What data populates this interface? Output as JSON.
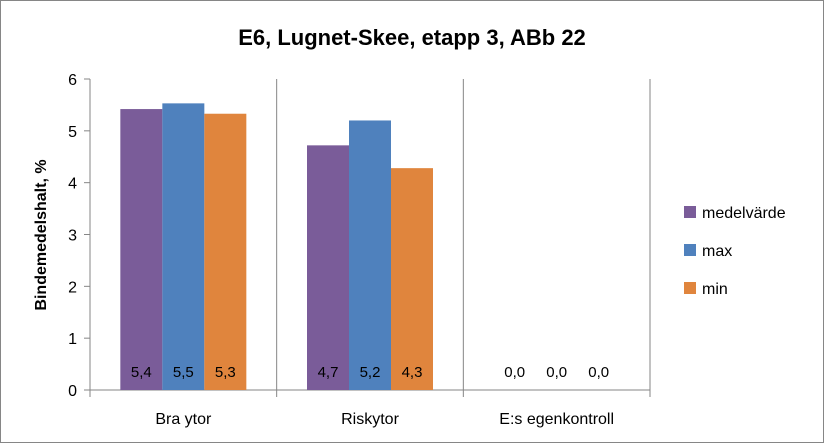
{
  "chart_data": {
    "type": "bar",
    "title": "E6, Lugnet-Skee, etapp 3, ABb 22",
    "ylabel": "Bindemedelshalt, %",
    "xlabel": "",
    "categories": [
      "Bra ytor",
      "Riskytor",
      "E:s egenkontroll"
    ],
    "series": [
      {
        "name": "medelvärde",
        "color": "#7a5c99",
        "values": [
          5.42,
          4.72,
          0.0
        ],
        "labels": [
          "5,4",
          "4,7",
          "0,0"
        ]
      },
      {
        "name": "max",
        "color": "#4f81bd",
        "values": [
          5.53,
          5.2,
          0.0
        ],
        "labels": [
          "5,5",
          "5,2",
          "0,0"
        ]
      },
      {
        "name": "min",
        "color": "#e0853d",
        "values": [
          5.33,
          4.28,
          0.0
        ],
        "labels": [
          "5,3",
          "4,3",
          "0,0"
        ]
      }
    ],
    "ylim": [
      0,
      6
    ],
    "yticks": [
      "0",
      "1",
      "2",
      "3",
      "4",
      "5",
      "6"
    ],
    "legend_position": "right",
    "grid": "vertical category separators"
  }
}
